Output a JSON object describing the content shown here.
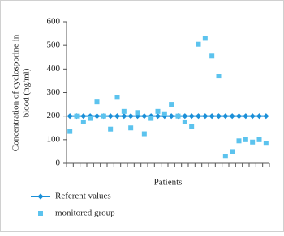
{
  "chart_data": {
    "type": "line",
    "y_label": [
      "Concentration of cyclosporine in",
      "blood (ng/ml)"
    ],
    "x_label": "Patients",
    "categories": [
      null,
      null,
      null,
      null,
      null,
      null,
      null,
      null,
      null,
      null,
      null,
      null,
      null,
      null,
      null,
      null,
      null,
      null,
      null,
      null,
      null,
      null,
      null,
      null,
      null,
      null,
      null,
      null,
      null,
      null
    ],
    "series": [
      {
        "name": "Referent values",
        "color": "#1a8fd8",
        "marker": "diamond",
        "line": true,
        "values": [
          200,
          200,
          200,
          200,
          200,
          200,
          200,
          200,
          200,
          200,
          200,
          200,
          200,
          200,
          200,
          200,
          200,
          200,
          200,
          200,
          200,
          200,
          200,
          200,
          200,
          200,
          200,
          200,
          200,
          200
        ]
      },
      {
        "name": "monitored group",
        "color": "#5cc3ee",
        "marker": "square",
        "line": false,
        "values": [
          135,
          200,
          175,
          190,
          260,
          200,
          145,
          280,
          220,
          150,
          215,
          125,
          190,
          220,
          210,
          250,
          200,
          175,
          155,
          505,
          530,
          455,
          370,
          30,
          50,
          95,
          100,
          90,
          100,
          85
        ]
      }
    ],
    "ylim": [
      0,
      600
    ],
    "yticks": [
      0,
      100,
      200,
      300,
      400,
      500,
      600
    ],
    "legend": "bottom"
  }
}
